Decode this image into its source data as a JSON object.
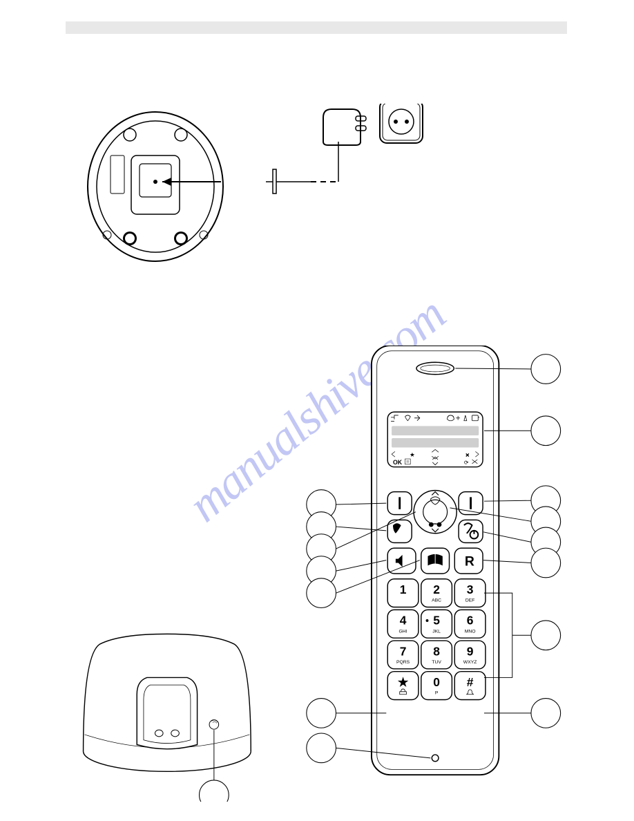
{
  "watermark_text": "manualshive.com",
  "watermark_color": "rgba(120,130,230,0.45)",
  "keypad": {
    "keys": [
      {
        "main": "1",
        "sub": ""
      },
      {
        "main": "2",
        "sub": "ABC"
      },
      {
        "main": "3",
        "sub": "DEF"
      },
      {
        "main": "4",
        "sub": "GHI"
      },
      {
        "main": "5",
        "sub": "JKL"
      },
      {
        "main": "6",
        "sub": "MNO"
      },
      {
        "main": "7",
        "sub": "PQRS"
      },
      {
        "main": "8",
        "sub": "TUV"
      },
      {
        "main": "9",
        "sub": "WXYZ"
      },
      {
        "main": "★",
        "sub": ""
      },
      {
        "main": "0",
        "sub": "P"
      },
      {
        "main": "#",
        "sub": ""
      }
    ]
  },
  "display": {
    "row_icons_top": "ok_text",
    "ok_label": "OK",
    "right_icon": "✕"
  }
}
